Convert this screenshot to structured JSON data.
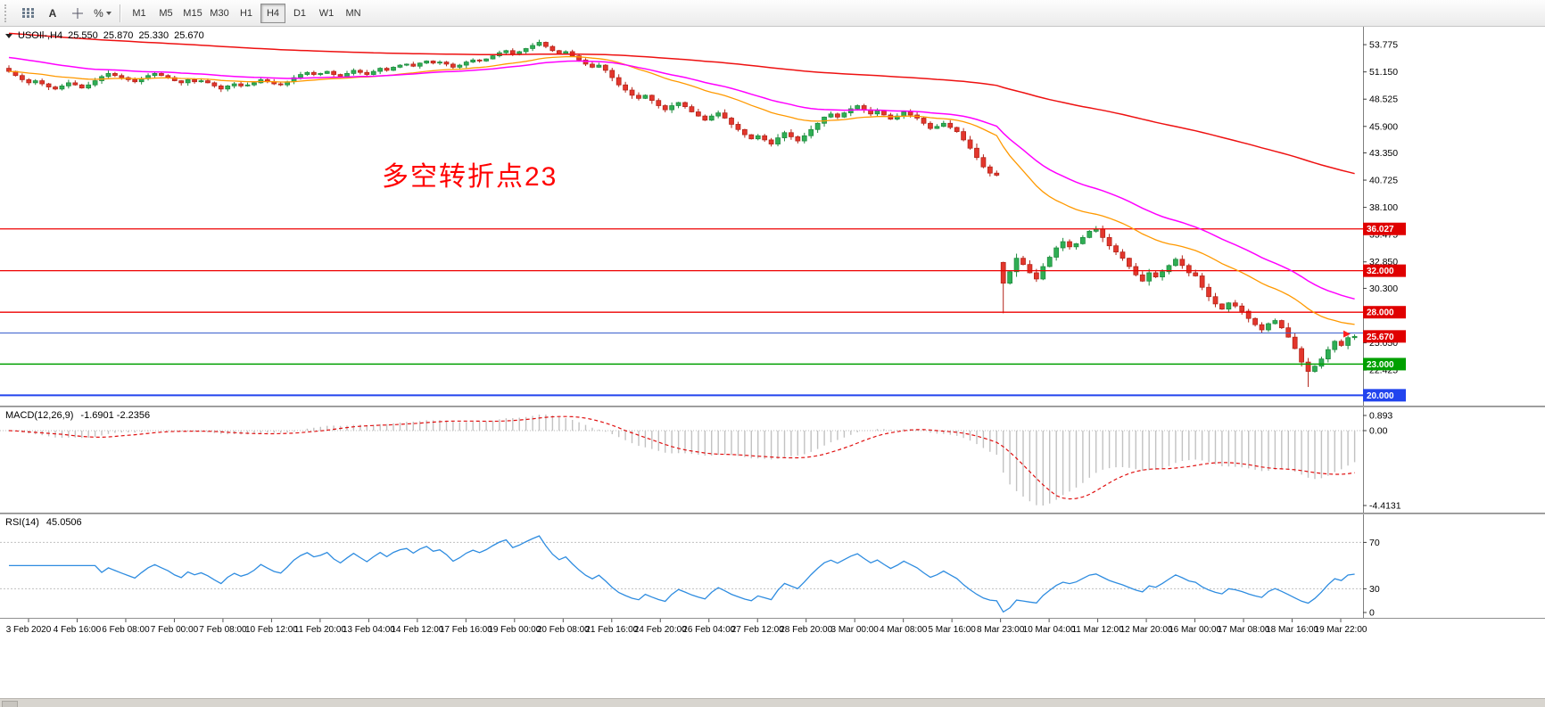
{
  "toolbar": {
    "text_tool_label": "A",
    "percent_tool_label": "%",
    "timeframes": [
      "M1",
      "M5",
      "M15",
      "M30",
      "H1",
      "H4",
      "D1",
      "W1",
      "MN"
    ],
    "active_timeframe": "H4"
  },
  "symbol_bar": {
    "title": "USOIl-,H4",
    "open": "25.550",
    "high": "25.870",
    "low": "25.330",
    "close": "25.670"
  },
  "annotation": {
    "text": "多空转折点23",
    "color": "#ff0000"
  },
  "price_scale": {
    "grid_labels": [
      "53.775",
      "51.150",
      "48.525",
      "45.900",
      "43.350",
      "40.725",
      "38.100",
      "35.475",
      "32.850",
      "30.300",
      "25.050",
      "22.425"
    ],
    "tags": [
      {
        "text": "36.027",
        "value": 36.027,
        "bg": "#e00000",
        "fg": "#ffffff"
      },
      {
        "text": "32.000",
        "value": 32.0,
        "bg": "#e00000",
        "fg": "#ffffff"
      },
      {
        "text": "28.000",
        "value": 28.0,
        "bg": "#e00000",
        "fg": "#ffffff"
      },
      {
        "text": "25.670",
        "value": 25.67,
        "bg": "#e00000",
        "fg": "#ffffff"
      },
      {
        "text": "23.000",
        "value": 23.0,
        "bg": "#00a000",
        "fg": "#ffffff"
      },
      {
        "text": "20.000",
        "value": 20.0,
        "bg": "#2244ee",
        "fg": "#ffffff"
      }
    ]
  },
  "hlines": [
    {
      "value": 36.027,
      "color": "#ee0000",
      "width": 1.3
    },
    {
      "value": 32.0,
      "color": "#ee0000",
      "width": 1.3
    },
    {
      "value": 28.0,
      "color": "#ee0000",
      "width": 1.3
    },
    {
      "value": 26.0,
      "color": "#3a5fcd",
      "width": 1
    },
    {
      "value": 23.0,
      "color": "#00a000",
      "width": 1.5
    },
    {
      "value": 20.0,
      "color": "#2244ee",
      "width": 2
    }
  ],
  "markers": [
    {
      "type": "arrow-right",
      "value": 25.9,
      "color": "#ff2020"
    }
  ],
  "chart_data": {
    "type": "candlestick",
    "symbol": "USOIl-",
    "timeframe": "H4",
    "y_range": [
      19.0,
      55.5
    ],
    "up_color": "#2fae54",
    "down_color": "#e3362c",
    "up_stroke": "#1d8a3d",
    "down_stroke": "#b32318",
    "ma_colors": {
      "fast": "#ff9900",
      "medium": "#ff00ff",
      "long": "#ee1111"
    },
    "closes": [
      51.2,
      50.8,
      50.4,
      50.1,
      50.3,
      50.0,
      49.7,
      49.5,
      49.8,
      50.1,
      49.9,
      49.6,
      49.9,
      50.3,
      50.7,
      51.0,
      50.8,
      50.6,
      50.4,
      50.2,
      50.5,
      50.8,
      51.0,
      50.8,
      50.6,
      50.3,
      50.1,
      50.4,
      50.2,
      50.3,
      50.1,
      49.8,
      49.5,
      49.8,
      50.0,
      49.8,
      49.9,
      50.1,
      50.4,
      50.2,
      50.0,
      49.9,
      50.2,
      50.6,
      50.9,
      51.1,
      50.9,
      51.0,
      51.2,
      50.9,
      50.7,
      51.0,
      51.3,
      51.1,
      50.9,
      51.2,
      51.5,
      51.3,
      51.6,
      51.8,
      51.9,
      51.7,
      52.0,
      52.2,
      52.0,
      52.1,
      51.9,
      51.6,
      51.8,
      52.1,
      52.3,
      52.2,
      52.4,
      52.7,
      53.0,
      53.2,
      52.9,
      53.1,
      53.4,
      53.7,
      54.0,
      53.6,
      53.2,
      52.9,
      53.1,
      52.7,
      52.3,
      51.9,
      51.6,
      51.8,
      51.3,
      50.6,
      49.9,
      49.4,
      48.9,
      48.6,
      48.9,
      48.4,
      47.9,
      47.5,
      47.9,
      48.2,
      47.8,
      47.3,
      46.9,
      46.5,
      46.9,
      47.2,
      46.7,
      46.1,
      45.6,
      45.1,
      44.7,
      45.0,
      44.6,
      44.2,
      44.8,
      45.3,
      44.9,
      44.5,
      45.0,
      45.6,
      46.2,
      46.8,
      47.1,
      46.8,
      47.2,
      47.6,
      47.9,
      47.5,
      47.1,
      47.4,
      47.0,
      46.6,
      46.9,
      47.3,
      47.0,
      46.7,
      46.2,
      45.7,
      45.9,
      46.2,
      45.8,
      45.4,
      44.6,
      43.8,
      42.9,
      42.0,
      41.4,
      41.2,
      30.8,
      31.9,
      33.2,
      32.6,
      31.8,
      31.2,
      32.4,
      33.3,
      34.2,
      34.8,
      34.3,
      34.6,
      35.2,
      35.8,
      36.0,
      35.2,
      34.4,
      33.8,
      33.2,
      32.4,
      31.6,
      31.0,
      31.8,
      31.4,
      31.9,
      32.5,
      33.1,
      32.5,
      31.8,
      31.5,
      30.4,
      29.5,
      28.8,
      28.3,
      28.9,
      28.6,
      28.1,
      27.4,
      26.8,
      26.3,
      26.9,
      27.2,
      26.5,
      25.6,
      24.5,
      23.2,
      22.3,
      22.8,
      23.5,
      24.4,
      25.2,
      24.8,
      25.55,
      25.67
    ],
    "open_overrides": {
      "0": 51.5,
      "150": 32.8
    },
    "wick_overrides": {
      "80": {
        "high": 54.25
      },
      "150": {
        "low": 27.9
      },
      "164": {
        "high": 36.3
      },
      "196": {
        "low": 20.8
      },
      "203": {
        "high": 25.87,
        "low": 25.33
      }
    },
    "time_labels": [
      "3 Feb 2020",
      "4 Feb 16:00",
      "6 Feb 08:00",
      "7 Feb 00:00",
      "7 Feb 08:00",
      "10 Feb 12:00",
      "11 Feb 20:00",
      "13 Feb 04:00",
      "14 Feb 12:00",
      "17 Feb 16:00",
      "19 Feb 00:00",
      "20 Feb 08:00",
      "21 Feb 16:00",
      "24 Feb 20:00",
      "26 Feb 04:00",
      "27 Feb 12:00",
      "28 Feb 20:00",
      "3 Mar 00:00",
      "4 Mar 08:00",
      "5 Mar 16:00",
      "8 Mar 23:00",
      "10 Mar 04:00",
      "11 Mar 12:00",
      "12 Mar 20:00",
      "16 Mar 00:00",
      "17 Mar 08:00",
      "18 Mar 16:00",
      "19 Mar 22:00"
    ]
  },
  "macd_panel": {
    "title": "MACD(12,26,9)",
    "values": "-1.6901 -2.2356",
    "scale_top": "0.893",
    "scale_zero": "0.00",
    "scale_bottom": "-4.4131",
    "histogram_color": "#c2c2c2",
    "signal_color": "#e01010"
  },
  "rsi_panel": {
    "title": "RSI(14)",
    "value": "45.0506",
    "scale_labels": [
      "70",
      "30",
      "0"
    ],
    "levels": [
      70,
      30
    ],
    "line_color": "#2e8ce0"
  }
}
